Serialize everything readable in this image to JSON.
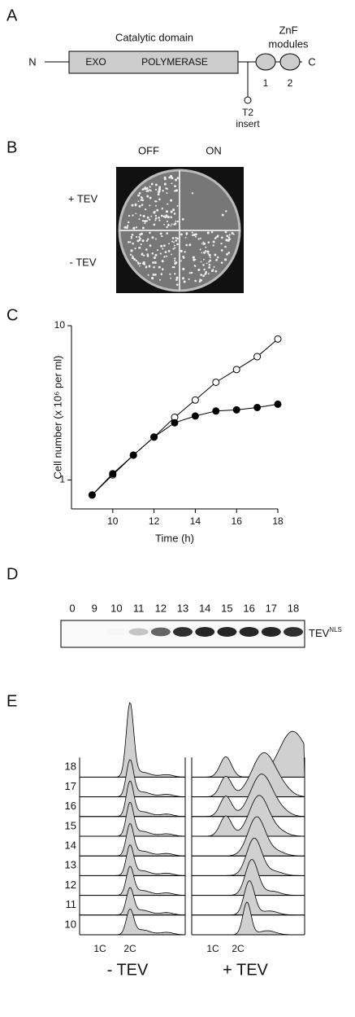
{
  "panel_labels": [
    "A",
    "B",
    "C",
    "D",
    "E"
  ],
  "diagram": {
    "catalytic": "Catalytic domain",
    "znf": "ZnF",
    "modules": "modules",
    "n_term": "N",
    "c_term": "C",
    "exo": "EXO",
    "polymerase": "POLYMERASE",
    "module_1": "1",
    "module_2": "2",
    "insert_1": "T2",
    "insert_2": "insert"
  },
  "plate": {
    "off": "OFF",
    "on": "ON",
    "plus_tev": "+ TEV",
    "minus_tev": "- TEV"
  },
  "chart_data": {
    "type": "line",
    "y_label": "Cell number (x 10⁶ per ml)",
    "x_label": "Time (h)",
    "x": [
      9,
      10,
      11,
      12,
      13,
      14,
      15,
      16,
      17,
      18
    ],
    "series": [
      {
        "marker": "open",
        "color": "#000000",
        "values": [
          0.8,
          1.08,
          1.45,
          1.9,
          2.55,
          3.3,
          4.3,
          5.2,
          6.3,
          8.2
        ]
      },
      {
        "marker": "filled",
        "color": "#000000",
        "values": [
          0.8,
          1.1,
          1.45,
          1.9,
          2.35,
          2.6,
          2.8,
          2.85,
          2.95,
          3.1
        ]
      }
    ],
    "xlim": [
      8,
      18
    ],
    "xticks": [
      10,
      12,
      14,
      16,
      18
    ],
    "ylim": [
      0.65,
      10
    ],
    "yticks": [
      1,
      10
    ],
    "log_y": true
  },
  "blot": {
    "lanes": [
      0,
      9,
      10,
      11,
      12,
      13,
      14,
      15,
      16,
      17,
      18
    ],
    "label": "TEV",
    "label_superscript": "NLS"
  },
  "flow": {
    "rows": [
      18,
      17,
      16,
      15,
      14,
      13,
      12,
      11,
      10
    ],
    "left_1c": "1C",
    "left_2c": "2C",
    "left_title": "- TEV",
    "right_1c": "1C",
    "right_2c": "2C",
    "right_title": "+ TEV"
  }
}
